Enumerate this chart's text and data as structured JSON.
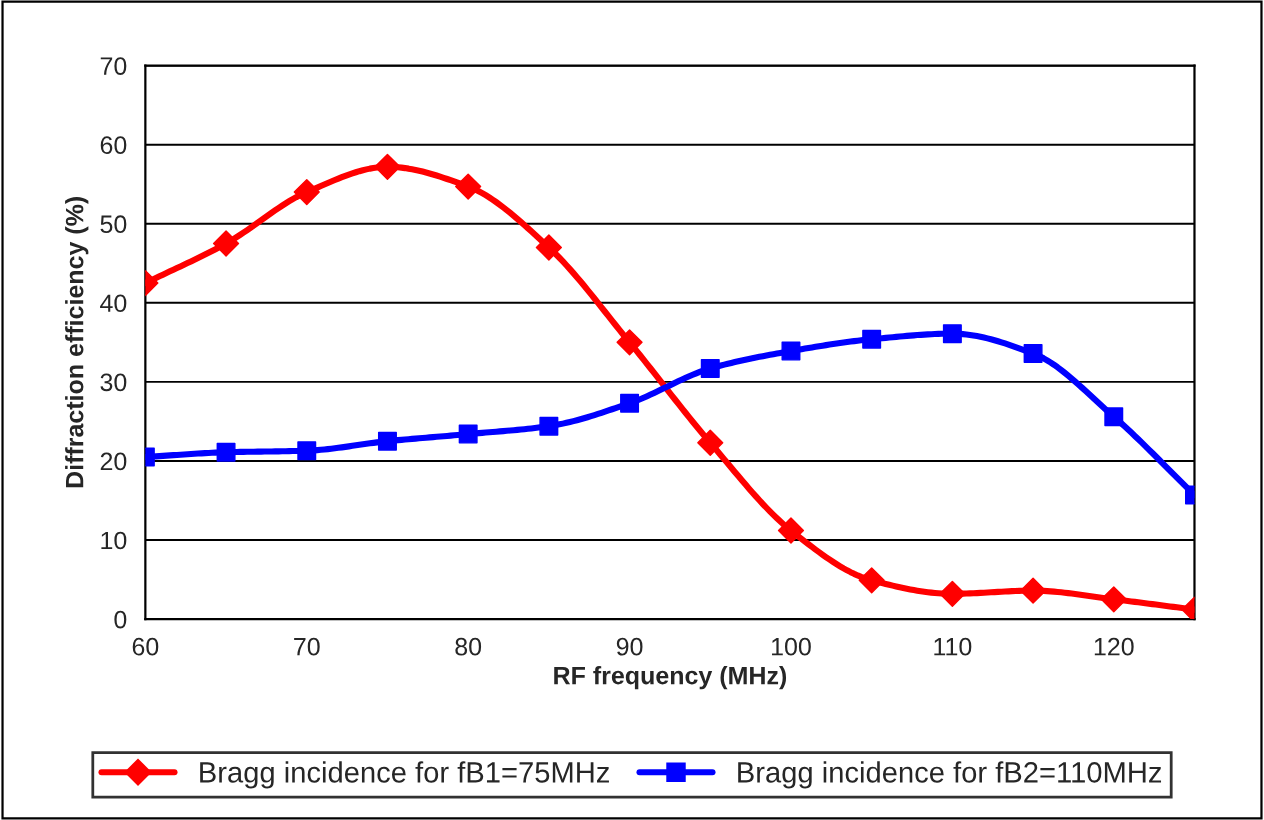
{
  "chart_data": {
    "type": "line",
    "xlabel": "RF frequency (MHz)",
    "ylabel": "Diffraction efficiency (%)",
    "x": [
      60,
      65,
      70,
      75,
      80,
      85,
      90,
      95,
      100,
      105,
      110,
      115,
      120,
      125
    ],
    "series": [
      {
        "name": "Bragg incidence for fB1=75MHz",
        "color": "#ff0000",
        "marker": "diamond",
        "values": [
          42.5,
          47.5,
          54,
          57.2,
          54.7,
          47,
          35,
          22.3,
          11.2,
          4.9,
          3.2,
          3.6,
          2.5,
          1.2
        ]
      },
      {
        "name": "Bragg incidence for fB2=110MHz",
        "color": "#0000ff",
        "marker": "square",
        "values": [
          20.5,
          21.1,
          21.3,
          22.5,
          23.4,
          24.4,
          27.3,
          31.7,
          33.9,
          35.4,
          36.1,
          33.6,
          25.6,
          15.7
        ]
      }
    ],
    "xlim": [
      60,
      125
    ],
    "xticks": [
      60,
      70,
      80,
      90,
      100,
      110,
      120
    ],
    "ylim": [
      0,
      70
    ],
    "yticks": [
      0,
      10,
      20,
      30,
      40,
      50,
      60,
      70
    ],
    "grid": "y",
    "legend": "bottom",
    "line_style": "solid"
  }
}
